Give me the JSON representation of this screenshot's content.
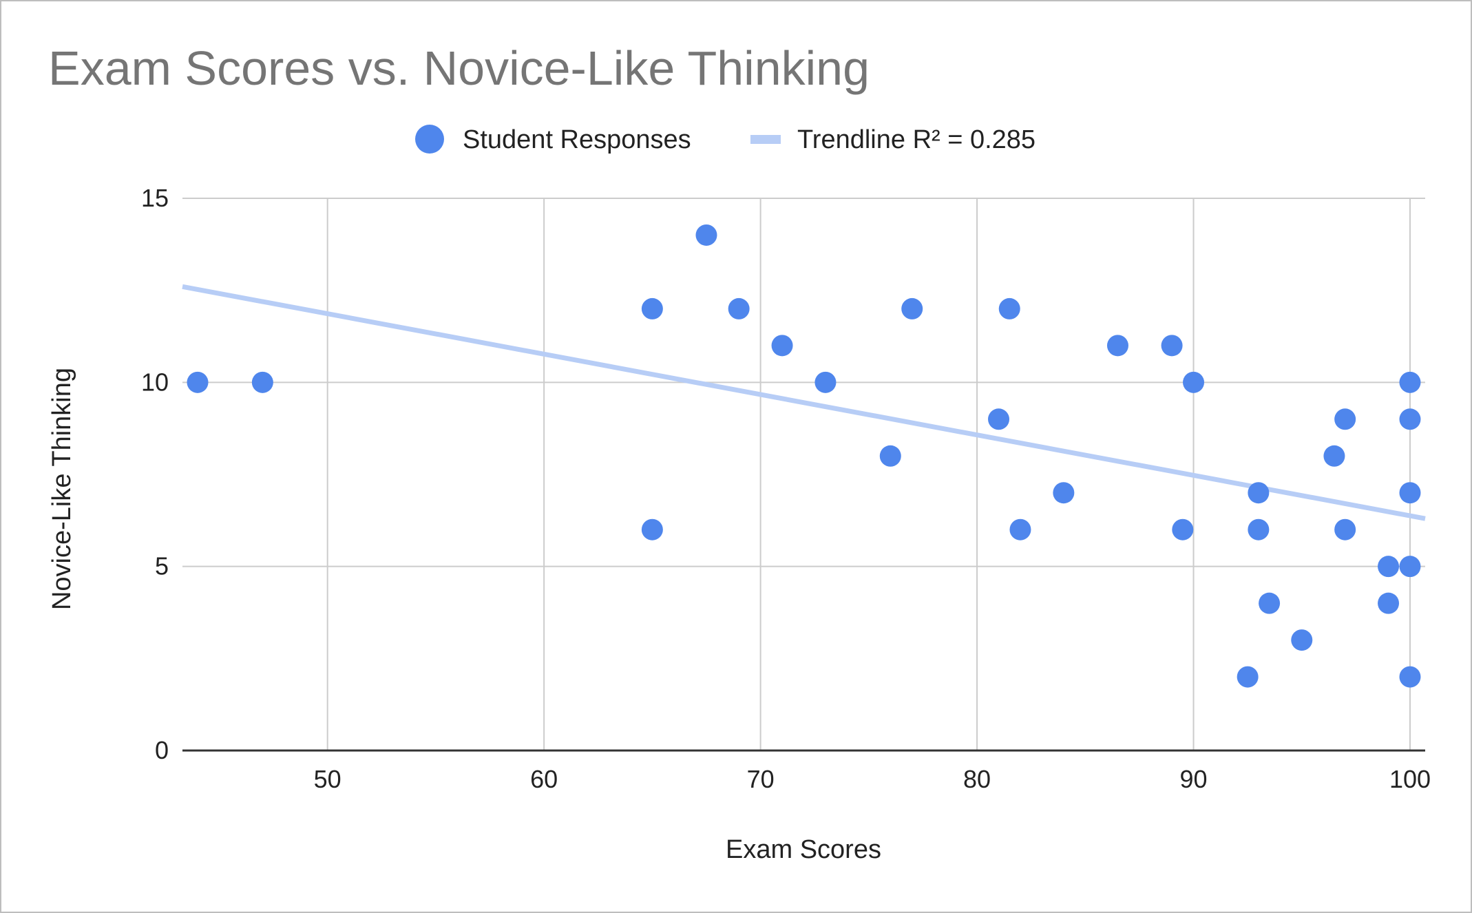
{
  "chart_data": {
    "type": "scatter",
    "title": "Exam Scores vs. Novice-Like Thinking",
    "xlabel": "Exam Scores",
    "ylabel": "Novice-Like Thinking",
    "xlim": [
      43.3,
      100.7
    ],
    "ylim": [
      0,
      15
    ],
    "x_ticks": [
      50,
      60,
      70,
      80,
      90,
      100
    ],
    "y_ticks": [
      0,
      5,
      10,
      15
    ],
    "grid": true,
    "legend_position": "top",
    "series": [
      {
        "name": "Student Responses",
        "color": "#4f86ec",
        "points": [
          [
            44,
            10
          ],
          [
            47,
            10
          ],
          [
            65,
            12
          ],
          [
            65,
            6
          ],
          [
            67.5,
            14
          ],
          [
            69,
            12
          ],
          [
            71,
            11
          ],
          [
            73,
            10
          ],
          [
            76,
            8
          ],
          [
            77,
            12
          ],
          [
            81,
            9
          ],
          [
            81.5,
            12
          ],
          [
            82,
            6
          ],
          [
            84,
            7
          ],
          [
            86.5,
            11
          ],
          [
            89,
            11
          ],
          [
            89.5,
            6
          ],
          [
            90,
            10
          ],
          [
            92.5,
            2
          ],
          [
            93,
            7
          ],
          [
            93,
            6
          ],
          [
            93.5,
            4
          ],
          [
            95,
            3
          ],
          [
            96.5,
            8
          ],
          [
            97,
            9
          ],
          [
            97,
            6
          ],
          [
            99,
            5
          ],
          [
            99,
            4
          ],
          [
            100,
            10
          ],
          [
            100,
            9
          ],
          [
            100,
            7
          ],
          [
            100,
            5
          ],
          [
            100,
            2
          ]
        ]
      }
    ],
    "trendline": {
      "name": "Trendline R² = 0.285",
      "color": "#b7cdf6",
      "start": [
        43.3,
        12.6
      ],
      "end": [
        100.7,
        6.3
      ]
    }
  }
}
